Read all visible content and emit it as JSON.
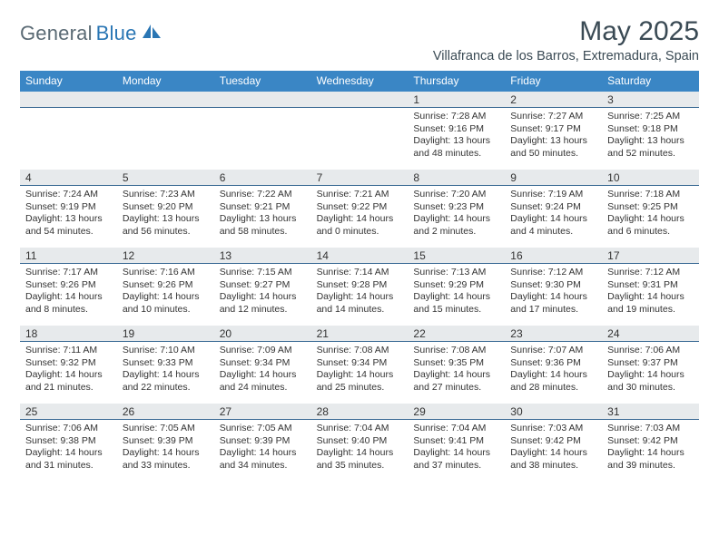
{
  "header": {
    "logo_text_1": "General",
    "logo_text_2": "Blue",
    "month_title": "May 2025",
    "location": "Villafranca de los Barros, Extremadura, Spain"
  },
  "style": {
    "weekday_bg": "#3a86c5",
    "weekday_fg": "#ffffff",
    "daynum_bg": "#e7eaec",
    "daynum_border": "#3a6a94",
    "logo_gray": "#5a6a74",
    "logo_blue": "#2a76b4",
    "text_color": "#333333"
  },
  "weekdays": [
    "Sunday",
    "Monday",
    "Tuesday",
    "Wednesday",
    "Thursday",
    "Friday",
    "Saturday"
  ],
  "leading_blanks": 4,
  "days": [
    {
      "n": "1",
      "sunrise": "7:28 AM",
      "sunset": "9:16 PM",
      "dl_h": "13",
      "dl_m": "48"
    },
    {
      "n": "2",
      "sunrise": "7:27 AM",
      "sunset": "9:17 PM",
      "dl_h": "13",
      "dl_m": "50"
    },
    {
      "n": "3",
      "sunrise": "7:25 AM",
      "sunset": "9:18 PM",
      "dl_h": "13",
      "dl_m": "52"
    },
    {
      "n": "4",
      "sunrise": "7:24 AM",
      "sunset": "9:19 PM",
      "dl_h": "13",
      "dl_m": "54"
    },
    {
      "n": "5",
      "sunrise": "7:23 AM",
      "sunset": "9:20 PM",
      "dl_h": "13",
      "dl_m": "56"
    },
    {
      "n": "6",
      "sunrise": "7:22 AM",
      "sunset": "9:21 PM",
      "dl_h": "13",
      "dl_m": "58"
    },
    {
      "n": "7",
      "sunrise": "7:21 AM",
      "sunset": "9:22 PM",
      "dl_h": "14",
      "dl_m": "0"
    },
    {
      "n": "8",
      "sunrise": "7:20 AM",
      "sunset": "9:23 PM",
      "dl_h": "14",
      "dl_m": "2"
    },
    {
      "n": "9",
      "sunrise": "7:19 AM",
      "sunset": "9:24 PM",
      "dl_h": "14",
      "dl_m": "4"
    },
    {
      "n": "10",
      "sunrise": "7:18 AM",
      "sunset": "9:25 PM",
      "dl_h": "14",
      "dl_m": "6"
    },
    {
      "n": "11",
      "sunrise": "7:17 AM",
      "sunset": "9:26 PM",
      "dl_h": "14",
      "dl_m": "8"
    },
    {
      "n": "12",
      "sunrise": "7:16 AM",
      "sunset": "9:26 PM",
      "dl_h": "14",
      "dl_m": "10"
    },
    {
      "n": "13",
      "sunrise": "7:15 AM",
      "sunset": "9:27 PM",
      "dl_h": "14",
      "dl_m": "12"
    },
    {
      "n": "14",
      "sunrise": "7:14 AM",
      "sunset": "9:28 PM",
      "dl_h": "14",
      "dl_m": "14"
    },
    {
      "n": "15",
      "sunrise": "7:13 AM",
      "sunset": "9:29 PM",
      "dl_h": "14",
      "dl_m": "15"
    },
    {
      "n": "16",
      "sunrise": "7:12 AM",
      "sunset": "9:30 PM",
      "dl_h": "14",
      "dl_m": "17"
    },
    {
      "n": "17",
      "sunrise": "7:12 AM",
      "sunset": "9:31 PM",
      "dl_h": "14",
      "dl_m": "19"
    },
    {
      "n": "18",
      "sunrise": "7:11 AM",
      "sunset": "9:32 PM",
      "dl_h": "14",
      "dl_m": "21"
    },
    {
      "n": "19",
      "sunrise": "7:10 AM",
      "sunset": "9:33 PM",
      "dl_h": "14",
      "dl_m": "22"
    },
    {
      "n": "20",
      "sunrise": "7:09 AM",
      "sunset": "9:34 PM",
      "dl_h": "14",
      "dl_m": "24"
    },
    {
      "n": "21",
      "sunrise": "7:08 AM",
      "sunset": "9:34 PM",
      "dl_h": "14",
      "dl_m": "25"
    },
    {
      "n": "22",
      "sunrise": "7:08 AM",
      "sunset": "9:35 PM",
      "dl_h": "14",
      "dl_m": "27"
    },
    {
      "n": "23",
      "sunrise": "7:07 AM",
      "sunset": "9:36 PM",
      "dl_h": "14",
      "dl_m": "28"
    },
    {
      "n": "24",
      "sunrise": "7:06 AM",
      "sunset": "9:37 PM",
      "dl_h": "14",
      "dl_m": "30"
    },
    {
      "n": "25",
      "sunrise": "7:06 AM",
      "sunset": "9:38 PM",
      "dl_h": "14",
      "dl_m": "31"
    },
    {
      "n": "26",
      "sunrise": "7:05 AM",
      "sunset": "9:39 PM",
      "dl_h": "14",
      "dl_m": "33"
    },
    {
      "n": "27",
      "sunrise": "7:05 AM",
      "sunset": "9:39 PM",
      "dl_h": "14",
      "dl_m": "34"
    },
    {
      "n": "28",
      "sunrise": "7:04 AM",
      "sunset": "9:40 PM",
      "dl_h": "14",
      "dl_m": "35"
    },
    {
      "n": "29",
      "sunrise": "7:04 AM",
      "sunset": "9:41 PM",
      "dl_h": "14",
      "dl_m": "37"
    },
    {
      "n": "30",
      "sunrise": "7:03 AM",
      "sunset": "9:42 PM",
      "dl_h": "14",
      "dl_m": "38"
    },
    {
      "n": "31",
      "sunrise": "7:03 AM",
      "sunset": "9:42 PM",
      "dl_h": "14",
      "dl_m": "39"
    }
  ],
  "labels": {
    "sunrise": "Sunrise:",
    "sunset": "Sunset:",
    "daylight_1": "Daylight:",
    "hours_word": "hours",
    "and_word": "and",
    "minutes_word": "minutes."
  }
}
